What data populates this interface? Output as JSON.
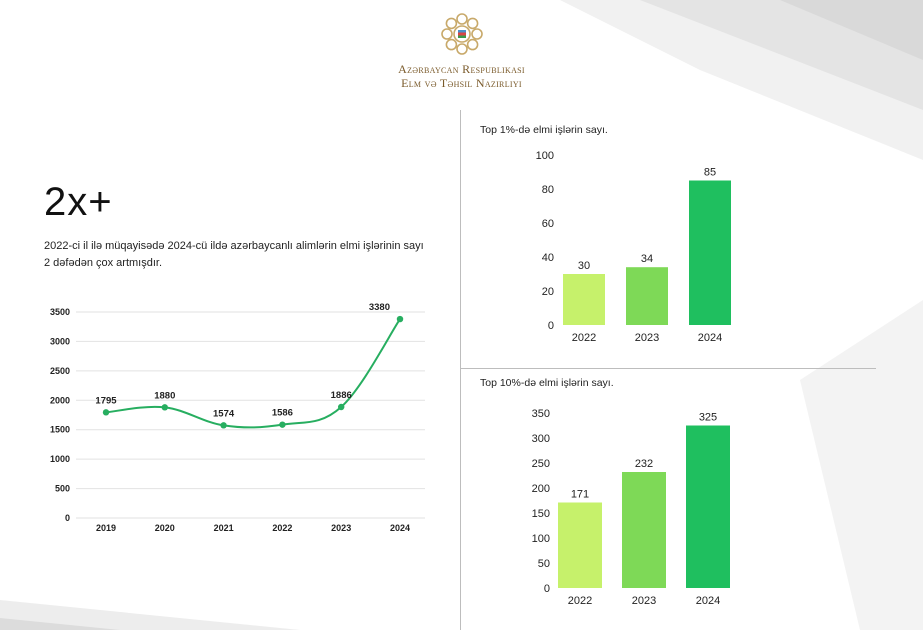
{
  "header": {
    "ministry_line1": "Azərbaycan Respublikası",
    "ministry_line2": "Elm və Təhsil Nazirliyi"
  },
  "headline": {
    "stat": "2x+",
    "description": "2022-ci il ilə müqayisədə 2024-cü ildə azərbaycanlı alimlərin elmi işlərinin sayı 2 dəfədən çox artmışdır."
  },
  "colors": {
    "line": "#27ae60",
    "bar_light": "#c6f16b",
    "bar_mid": "#7ed957",
    "bar_dark": "#1fbf5f",
    "emblem": "#c8a96a"
  },
  "chart_data": [
    {
      "type": "line",
      "title": "",
      "x": [
        "2019",
        "2020",
        "2021",
        "2022",
        "2023",
        "2024"
      ],
      "series": [
        {
          "values": [
            1795,
            1880,
            1574,
            1586,
            1886,
            3380
          ]
        }
      ],
      "data_labels": [
        "1795",
        "1880",
        "1574",
        "1586",
        "1886",
        "3380"
      ],
      "yticks": [
        "0",
        "500",
        "1000",
        "1500",
        "2000",
        "2500",
        "3000",
        "3500"
      ],
      "ylim": [
        0,
        3500
      ],
      "grid": true
    },
    {
      "type": "bar",
      "title": "Top 1%-də elmi işlərin sayı.",
      "categories": [
        "2022",
        "2023",
        "2024"
      ],
      "values": [
        30,
        34,
        85
      ],
      "data_labels": [
        "30",
        "34",
        "85"
      ],
      "yticks": [
        "0",
        "20",
        "40",
        "60",
        "80",
        "100"
      ],
      "ylim": [
        0,
        100
      ],
      "grid": false
    },
    {
      "type": "bar",
      "title": "Top 10%-də elmi işlərin sayı.",
      "categories": [
        "2022",
        "2023",
        "2024"
      ],
      "values": [
        171,
        232,
        325
      ],
      "data_labels": [
        "171",
        "232",
        "325"
      ],
      "yticks": [
        "0",
        "50",
        "100",
        "150",
        "200",
        "250",
        "300",
        "350"
      ],
      "ylim": [
        0,
        350
      ],
      "grid": false
    }
  ]
}
